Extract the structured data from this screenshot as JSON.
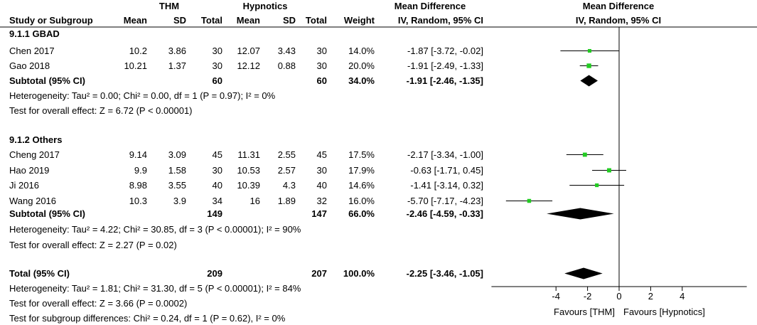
{
  "chart_data": {
    "type": "forest",
    "header": {
      "group1": "THM",
      "group2": "Hypnotics",
      "effect_top": "Mean Difference",
      "effect_method": "IV, Random, 95% CI",
      "plot_top": "Mean Difference",
      "plot_method": "IV, Random, 95% CI",
      "columns": [
        "Study or Subgroup",
        "Mean",
        "SD",
        "Total",
        "Mean",
        "SD",
        "Total",
        "Weight",
        "IV, Random, 95% CI"
      ]
    },
    "subgroups": [
      {
        "title": "9.1.1 GBAD",
        "studies": [
          {
            "name": "Chen 2017",
            "m1": "10.2",
            "sd1": "3.86",
            "n1": "30",
            "m2": "12.07",
            "sd2": "3.43",
            "n2": "30",
            "weight": "14.0%",
            "ci_text": "-1.87 [-3.72, -0.02]",
            "md": -1.87,
            "lo": -3.72,
            "hi": -0.02,
            "w": 14.0
          },
          {
            "name": "Gao 2018",
            "m1": "10.21",
            "sd1": "1.37",
            "n1": "30",
            "m2": "12.12",
            "sd2": "0.88",
            "n2": "30",
            "weight": "20.0%",
            "ci_text": "-1.91 [-2.49, -1.33]",
            "md": -1.91,
            "lo": -2.49,
            "hi": -1.33,
            "w": 20.0
          }
        ],
        "subtotal": {
          "label": "Subtotal (95% CI)",
          "n1": "60",
          "n2": "60",
          "weight": "34.0%",
          "ci_text": "-1.91 [-2.46, -1.35]",
          "md": -1.91,
          "lo": -2.46,
          "hi": -1.35
        },
        "heterogeneity": "Heterogeneity: Tau² = 0.00; Chi² = 0.00, df = 1 (P = 0.97); I² = 0%",
        "overall": "Test for overall effect: Z = 6.72 (P < 0.00001)"
      },
      {
        "title": "9.1.2 Others",
        "studies": [
          {
            "name": "Cheng 2017",
            "m1": "9.14",
            "sd1": "3.09",
            "n1": "45",
            "m2": "11.31",
            "sd2": "2.55",
            "n2": "45",
            "weight": "17.5%",
            "ci_text": "-2.17 [-3.34, -1.00]",
            "md": -2.17,
            "lo": -3.34,
            "hi": -1.0,
            "w": 17.5
          },
          {
            "name": "Hao 2019",
            "m1": "9.9",
            "sd1": "1.58",
            "n1": "30",
            "m2": "10.53",
            "sd2": "2.57",
            "n2": "30",
            "weight": "17.9%",
            "ci_text": "-0.63 [-1.71, 0.45]",
            "md": -0.63,
            "lo": -1.71,
            "hi": 0.45,
            "w": 17.9
          },
          {
            "name": "Ji 2016",
            "m1": "8.98",
            "sd1": "3.55",
            "n1": "40",
            "m2": "10.39",
            "sd2": "4.3",
            "n2": "40",
            "weight": "14.6%",
            "ci_text": "-1.41 [-3.14, 0.32]",
            "md": -1.41,
            "lo": -3.14,
            "hi": 0.32,
            "w": 14.6
          },
          {
            "name": "Wang 2016",
            "m1": "10.3",
            "sd1": "3.9",
            "n1": "34",
            "m2": "16",
            "sd2": "1.89",
            "n2": "32",
            "weight": "16.0%",
            "ci_text": "-5.70 [-7.17, -4.23]",
            "md": -5.7,
            "lo": -7.17,
            "hi": -4.23,
            "w": 16.0
          }
        ],
        "subtotal": {
          "label": "Subtotal (95% CI)",
          "n1": "149",
          "n2": "147",
          "weight": "66.0%",
          "ci_text": "-2.46 [-4.59, -0.33]",
          "md": -2.46,
          "lo": -4.59,
          "hi": -0.33
        },
        "heterogeneity": "Heterogeneity: Tau² = 4.22; Chi² = 30.85, df = 3 (P < 0.00001); I² = 90%",
        "overall": "Test for overall effect: Z = 2.27 (P = 0.02)"
      }
    ],
    "total": {
      "label": "Total (95% CI)",
      "n1": "209",
      "n2": "207",
      "weight": "100.0%",
      "ci_text": "-2.25 [-3.46, -1.05]",
      "md": -2.25,
      "lo": -3.46,
      "hi": -1.05,
      "heterogeneity": "Heterogeneity: Tau² = 1.81; Chi² = 31.30, df = 5 (P < 0.00001); I² = 84%",
      "overall": "Test for overall effect: Z = 3.66 (P = 0.0002)",
      "subgroup_diff": "Test for subgroup differences: Chi² = 0.24, df = 1 (P = 0.62), I² = 0%"
    },
    "axis": {
      "xlim": [
        -8,
        8
      ],
      "ticks": [
        -4,
        -2,
        0,
        2,
        4
      ],
      "tick_labels": [
        "-4",
        "-2",
        "0",
        "2",
        "4"
      ],
      "favours_left": "Favours [THM]",
      "favours_right": "Favours [Hypnotics]"
    },
    "colors": {
      "marker": "#22cc22",
      "diamond": "#000000",
      "line": "#000000"
    }
  }
}
